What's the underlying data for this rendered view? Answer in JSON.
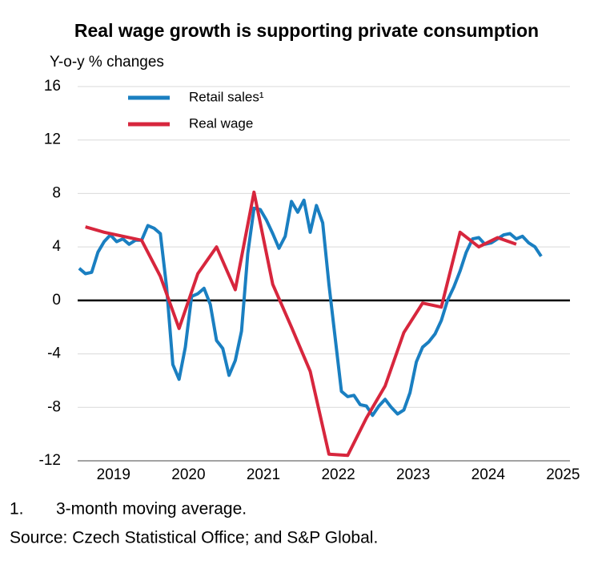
{
  "chart_data": {
    "type": "line",
    "title": "Real wage growth is supporting private consumption",
    "y_label": "Y-o-y % changes",
    "notes": [
      "1.",
      "3-month moving average.",
      "Source: Czech Statistical Office; and S&P Global."
    ],
    "xlim": [
      2019,
      2025.62
    ],
    "xticks": [
      {
        "value": 2019.5,
        "label": "2019"
      },
      {
        "value": 2020.5,
        "label": "2020"
      },
      {
        "value": 2021.5,
        "label": "2021"
      },
      {
        "value": 2022.5,
        "label": "2022"
      },
      {
        "value": 2023.5,
        "label": "2023"
      },
      {
        "value": 2024.5,
        "label": "2024"
      },
      {
        "value": 2025.5,
        "label": "2025"
      }
    ],
    "ylim": [
      -12,
      16
    ],
    "yticks": [
      -12,
      -8,
      -4,
      0,
      4,
      8,
      12,
      16
    ],
    "grid": true,
    "legend": "top-left",
    "series": [
      {
        "name": "Retail sales¹",
        "color": "#1a7fc1",
        "x": [
          2019.042,
          2019.125,
          2019.208,
          2019.292,
          2019.375,
          2019.458,
          2019.542,
          2019.625,
          2019.708,
          2019.792,
          2019.875,
          2019.958,
          2020.042,
          2020.125,
          2020.208,
          2020.292,
          2020.375,
          2020.458,
          2020.542,
          2020.625,
          2020.708,
          2020.792,
          2020.875,
          2020.958,
          2021.042,
          2021.125,
          2021.208,
          2021.292,
          2021.375,
          2021.458,
          2021.542,
          2021.625,
          2021.708,
          2021.792,
          2021.875,
          2021.958,
          2022.042,
          2022.125,
          2022.208,
          2022.292,
          2022.375,
          2022.458,
          2022.542,
          2022.625,
          2022.708,
          2022.792,
          2022.875,
          2022.958,
          2023.042,
          2023.125,
          2023.208,
          2023.292,
          2023.375,
          2023.458,
          2023.542,
          2023.625,
          2023.708,
          2023.792,
          2023.875,
          2023.958,
          2024.042,
          2024.125,
          2024.208,
          2024.292,
          2024.375,
          2024.458,
          2024.542,
          2024.625,
          2024.708,
          2024.792,
          2024.875,
          2024.958,
          2025.042,
          2025.125,
          2025.208
        ],
        "values": [
          2.4,
          2.0,
          2.1,
          3.6,
          4.4,
          4.9,
          4.4,
          4.6,
          4.2,
          4.5,
          4.5,
          5.6,
          5.4,
          5.0,
          1.0,
          -4.8,
          -5.9,
          -3.5,
          0.3,
          0.5,
          0.9,
          -0.3,
          -3.0,
          -3.6,
          -5.6,
          -4.5,
          -2.3,
          3.5,
          6.9,
          6.8,
          6.0,
          5.0,
          3.9,
          4.8,
          7.4,
          6.6,
          7.5,
          5.1,
          7.1,
          5.8,
          1.2,
          -2.8,
          -6.8,
          -7.2,
          -7.1,
          -7.8,
          -7.9,
          -8.6,
          -7.9,
          -7.4,
          -8.0,
          -8.5,
          -8.2,
          -6.9,
          -4.6,
          -3.5,
          -3.1,
          -2.5,
          -1.5,
          0.0,
          1.0,
          2.2,
          3.6,
          4.6,
          4.7,
          4.2,
          4.3,
          4.6,
          4.9,
          5.0,
          4.6,
          4.8,
          4.3,
          4.0,
          3.3
        ]
      },
      {
        "name": "Real wage",
        "color": "#d7263d",
        "x": [
          2019.125,
          2019.375,
          2019.625,
          2019.875,
          2020.125,
          2020.375,
          2020.625,
          2020.875,
          2021.125,
          2021.375,
          2021.625,
          2021.875,
          2022.125,
          2022.375,
          2022.625,
          2022.875,
          2023.125,
          2023.375,
          2023.625,
          2023.875,
          2024.125,
          2024.375,
          2024.625,
          2024.875
        ],
        "values": [
          5.5,
          5.1,
          4.8,
          4.5,
          1.8,
          -2.1,
          2.0,
          4.0,
          0.8,
          8.1,
          1.2,
          -2.0,
          -5.3,
          -11.5,
          -11.6,
          -8.8,
          -6.4,
          -2.4,
          -0.2,
          -0.5,
          5.1,
          4.0,
          4.7,
          4.2
        ]
      }
    ]
  }
}
